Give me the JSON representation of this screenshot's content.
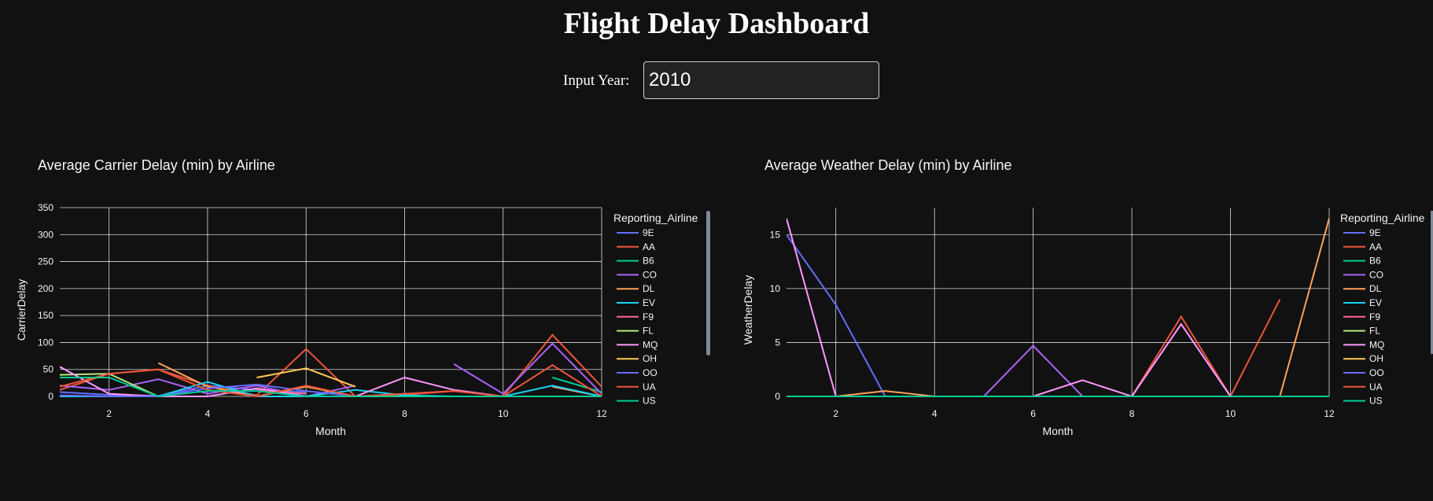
{
  "page": {
    "title": "Flight Delay Dashboard"
  },
  "input": {
    "label": "Input Year:",
    "value": "2010"
  },
  "airlines": [
    "9E",
    "AA",
    "B6",
    "CO",
    "DL",
    "EV",
    "F9",
    "FL",
    "MQ",
    "OH",
    "OO",
    "UA",
    "US"
  ],
  "colors": {
    "9E": "#636efa",
    "AA": "#EF553B",
    "B6": "#00cc96",
    "CO": "#ab63fa",
    "DL": "#FFA15A",
    "EV": "#19d3f3",
    "F9": "#FF6692",
    "FL": "#B6E880",
    "MQ": "#FF97FF",
    "OH": "#FECB52",
    "OO": "#636efa",
    "UA": "#EF553B",
    "US": "#00cc96"
  },
  "chart_data": [
    {
      "type": "line",
      "title": "Average Carrier Delay (min) by Airline",
      "xlabel": "Month",
      "ylabel": "CarrierDelay",
      "legend_title": "Reporting_Airline",
      "xlim": [
        1,
        12
      ],
      "ylim": [
        0,
        350
      ],
      "xticks": [
        2,
        4,
        6,
        8,
        10,
        12
      ],
      "yticks": [
        0,
        50,
        100,
        150,
        200,
        250,
        300,
        350
      ],
      "grid": true,
      "legend_position": "right",
      "series": [
        {
          "name": "9E",
          "values": [
            8,
            3,
            1,
            20,
            12,
            8,
            null,
            null,
            null,
            0,
            null,
            2
          ]
        },
        {
          "name": "AA",
          "values": [
            12,
            42,
            50,
            20,
            2,
            88,
            0,
            3,
            10,
            0,
            114,
            18
          ]
        },
        {
          "name": "B6",
          "values": [
            null,
            null,
            null,
            null,
            0,
            null,
            null,
            null,
            null,
            null,
            35,
            8
          ]
        },
        {
          "name": "CO",
          "values": [
            20,
            12,
            32,
            5,
            20,
            0,
            20,
            null,
            60,
            5,
            98,
            5
          ]
        },
        {
          "name": "DL",
          "values": [
            null,
            null,
            62,
            18,
            0,
            18,
            0,
            null,
            null,
            null,
            18,
            0
          ]
        },
        {
          "name": "EV",
          "values": [
            0,
            0,
            0,
            27,
            0,
            0,
            12,
            2,
            0,
            0,
            20,
            0
          ]
        },
        {
          "name": "F9",
          "values": [
            null,
            null,
            null,
            null,
            12,
            5,
            null,
            null,
            null,
            null,
            null,
            null
          ]
        },
        {
          "name": "FL",
          "values": [
            40,
            42,
            0,
            null,
            null,
            null,
            null,
            null,
            null,
            null,
            null,
            null
          ]
        },
        {
          "name": "MQ",
          "values": [
            55,
            5,
            0,
            0,
            15,
            0,
            0,
            35,
            12,
            0,
            0,
            0
          ]
        },
        {
          "name": "OH",
          "values": [
            null,
            null,
            null,
            null,
            35,
            52,
            18,
            null,
            null,
            null,
            null,
            null
          ]
        },
        {
          "name": "OO",
          "values": [
            2,
            0,
            0,
            15,
            22,
            10,
            0,
            0,
            0,
            0,
            0,
            0
          ]
        },
        {
          "name": "UA",
          "values": [
            18,
            42,
            50,
            12,
            0,
            20,
            0,
            5,
            10,
            0,
            58,
            0
          ]
        },
        {
          "name": "US",
          "values": [
            35,
            35,
            0,
            10,
            10,
            0,
            0,
            0,
            0,
            0,
            0,
            0
          ]
        }
      ]
    },
    {
      "type": "line",
      "title": "Average Weather Delay (min) by Airline",
      "xlabel": "Month",
      "ylabel": "WeatherDelay",
      "legend_title": "Reporting_Airline",
      "xlim": [
        1,
        12
      ],
      "ylim": [
        0,
        17.5
      ],
      "xticks": [
        2,
        4,
        6,
        8,
        10,
        12
      ],
      "yticks": [
        0,
        5,
        10,
        15
      ],
      "grid": true,
      "legend_position": "right",
      "series": [
        {
          "name": "9E",
          "values": [
            15,
            8.5,
            0,
            0,
            0,
            0,
            0,
            0,
            0,
            0,
            0,
            0
          ]
        },
        {
          "name": "AA",
          "values": [
            0,
            0,
            0,
            0,
            0,
            0,
            0,
            0,
            7.4,
            0,
            9,
            null
          ]
        },
        {
          "name": "B6",
          "values": [
            0,
            0,
            0,
            0,
            0,
            0,
            0,
            0,
            0,
            0,
            0,
            0
          ]
        },
        {
          "name": "CO",
          "values": [
            0,
            0,
            0,
            0,
            0,
            4.7,
            0,
            0,
            6.7,
            0,
            0,
            0
          ]
        },
        {
          "name": "DL",
          "values": [
            0,
            0,
            0.5,
            0,
            0,
            0,
            0,
            0,
            0,
            0,
            0,
            16.5
          ]
        },
        {
          "name": "EV",
          "values": [
            0,
            0,
            0,
            0,
            0,
            0,
            0,
            0,
            0,
            0,
            0,
            0
          ]
        },
        {
          "name": "F9",
          "values": [
            0,
            0,
            0,
            0,
            0,
            0,
            0,
            0,
            0,
            0,
            0,
            0
          ]
        },
        {
          "name": "FL",
          "values": [
            0,
            0,
            0,
            0,
            0,
            0,
            0,
            0,
            0,
            0,
            0,
            0
          ]
        },
        {
          "name": "MQ",
          "values": [
            16.5,
            0,
            0,
            0,
            0,
            0,
            1.5,
            0,
            6.7,
            0,
            0,
            0
          ]
        },
        {
          "name": "OH",
          "values": [
            0,
            0,
            0,
            0,
            0,
            0,
            0,
            0,
            0,
            0,
            0,
            0
          ]
        },
        {
          "name": "OO",
          "values": [
            0,
            0,
            0,
            0,
            0,
            0,
            0,
            0,
            0,
            0,
            0,
            0
          ]
        },
        {
          "name": "UA",
          "values": [
            0,
            0,
            0,
            0,
            0,
            0,
            0,
            0,
            0,
            0,
            0,
            0
          ]
        },
        {
          "name": "US",
          "values": [
            0,
            0,
            0,
            0,
            0,
            0,
            0,
            0,
            0,
            0,
            0,
            0
          ]
        }
      ]
    }
  ]
}
